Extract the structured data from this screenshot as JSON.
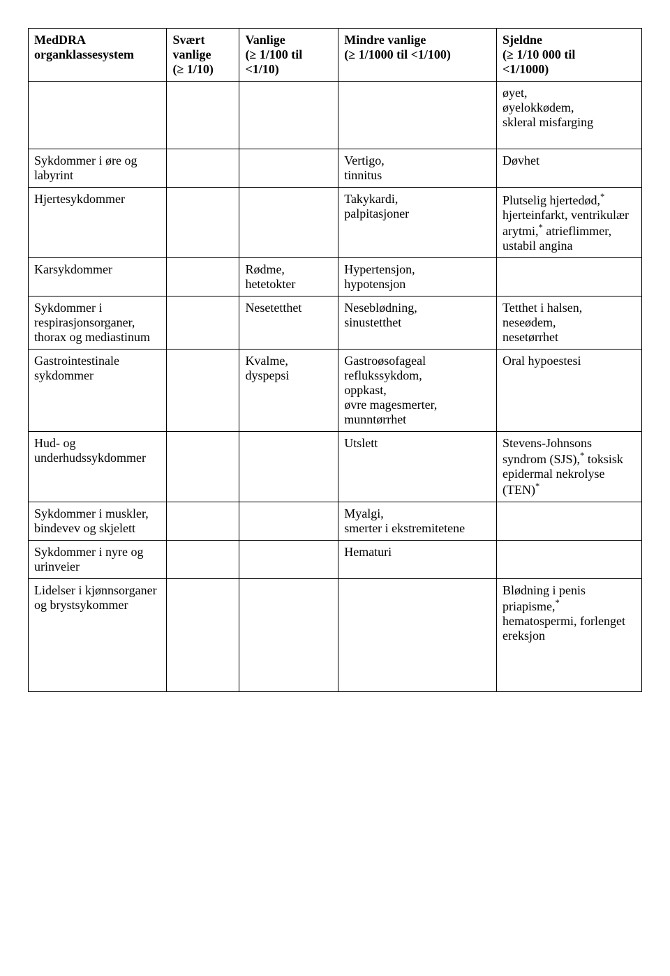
{
  "table": {
    "columns": [
      "MedDRA\norganklassesystem",
      "Svært\nvanlige\n(≥ 1/10)",
      "Vanlige\n(≥ 1/100 til\n<1/10)",
      "Mindre vanlige\n(≥ 1/1000 til <1/100)",
      "Sjeldne\n(≥ 1/10 000 til\n<1/1000)"
    ],
    "rows": [
      {
        "cells": [
          "",
          "",
          "",
          "",
          "øyet,\nøyelokkødem,\nskleral misfarging\n\n"
        ]
      },
      {
        "cells": [
          "Sykdommer i øre og labyrint",
          "",
          "",
          "Vertigo,\ntinnitus",
          "Døvhet"
        ]
      },
      {
        "cells": [
          "Hjertesykdommer",
          "",
          "",
          "Takykardi,\npalpitasjoner",
          {
            "html": "Plutselig hjertedød,<sup>*</sup> hjerteinfarkt, ventrikulær arytmi,<sup>*</sup> atrieflimmer, ustabil angina"
          }
        ]
      },
      {
        "cells": [
          "Karsykdommer",
          "",
          "Rødme,\nhetetokter",
          "Hypertensjon,\nhypotensjon",
          ""
        ]
      },
      {
        "cells": [
          "Sykdommer i respirasjonsorganer, thorax og mediastinum",
          "",
          "Nesetetthet",
          "Neseblødning,\nsinustetthet",
          "Tetthet i halsen,\nneseødem,\nnesetørrhet"
        ]
      },
      {
        "cells": [
          "Gastrointestinale sykdommer",
          "",
          "Kvalme,\ndyspepsi",
          "Gastroøsofageal reflukssykdom,\noppkast,\nøvre magesmerter,\nmunntørrhet",
          "Oral hypoestesi"
        ]
      },
      {
        "cells": [
          "Hud- og underhudssykdommer",
          "",
          "",
          "Utslett",
          {
            "html": "Stevens-Johnsons syndrom (SJS),<sup>*</sup> toksisk epidermal nekrolyse (TEN)<sup>*</sup>"
          }
        ]
      },
      {
        "cells": [
          "Sykdommer i muskler, bindevev og skjelett",
          "",
          "",
          "Myalgi,\nsmerter i ekstremitetene",
          ""
        ]
      },
      {
        "cells": [
          "Sykdommer i nyre og urinveier",
          "",
          "",
          "Hematuri",
          ""
        ]
      },
      {
        "cells": [
          "Lidelser i kjønnsorganer og brystsykommer",
          "",
          "",
          "",
          {
            "html": "Blødning i penis priapisme,<sup>*</sup> hematospermi, forlenget ereksjon<br><br><br><br>"
          }
        ]
      }
    ],
    "colwidths": [
      "21%",
      "11%",
      "15%",
      "24%",
      "22%"
    ],
    "border_color": "#000000",
    "background_color": "#ffffff",
    "font_family": "Times New Roman",
    "font_size_pt": 14
  }
}
